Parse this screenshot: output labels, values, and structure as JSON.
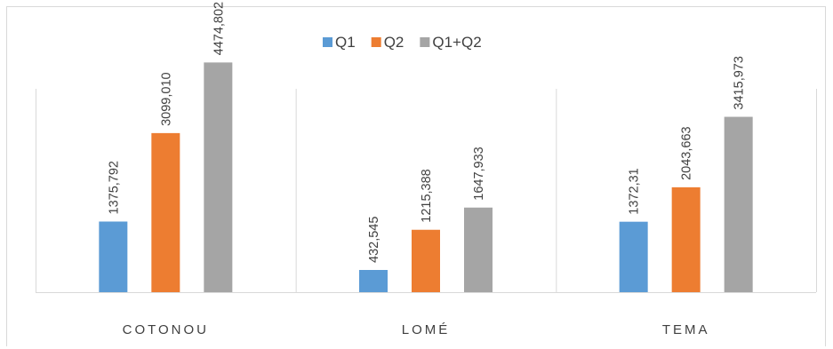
{
  "chart_data": {
    "type": "bar",
    "categories": [
      "COTONOU",
      "LOMÉ",
      "TEMA"
    ],
    "series": [
      {
        "name": "Q1",
        "values": [
          1375.792,
          432.545,
          1372.31
        ],
        "labels": [
          "1375,792",
          "432,545",
          "1372,31"
        ],
        "color": "#5b9bd5"
      },
      {
        "name": "Q2",
        "values": [
          3099.01,
          1215.388,
          2043.663
        ],
        "labels": [
          "3099,010",
          "1215,388",
          "2043,663"
        ],
        "color": "#ed7d31"
      },
      {
        "name": "Q1+Q2",
        "values": [
          4474.802,
          1647.933,
          3415.973
        ],
        "labels": [
          "4474,802",
          "1647,933",
          "3415,973"
        ],
        "color": "#a5a5a5"
      }
    ],
    "title": "",
    "xlabel": "",
    "ylabel": "",
    "ylim": [
      0,
      5000
    ],
    "grid": false,
    "legend_position": "top"
  }
}
